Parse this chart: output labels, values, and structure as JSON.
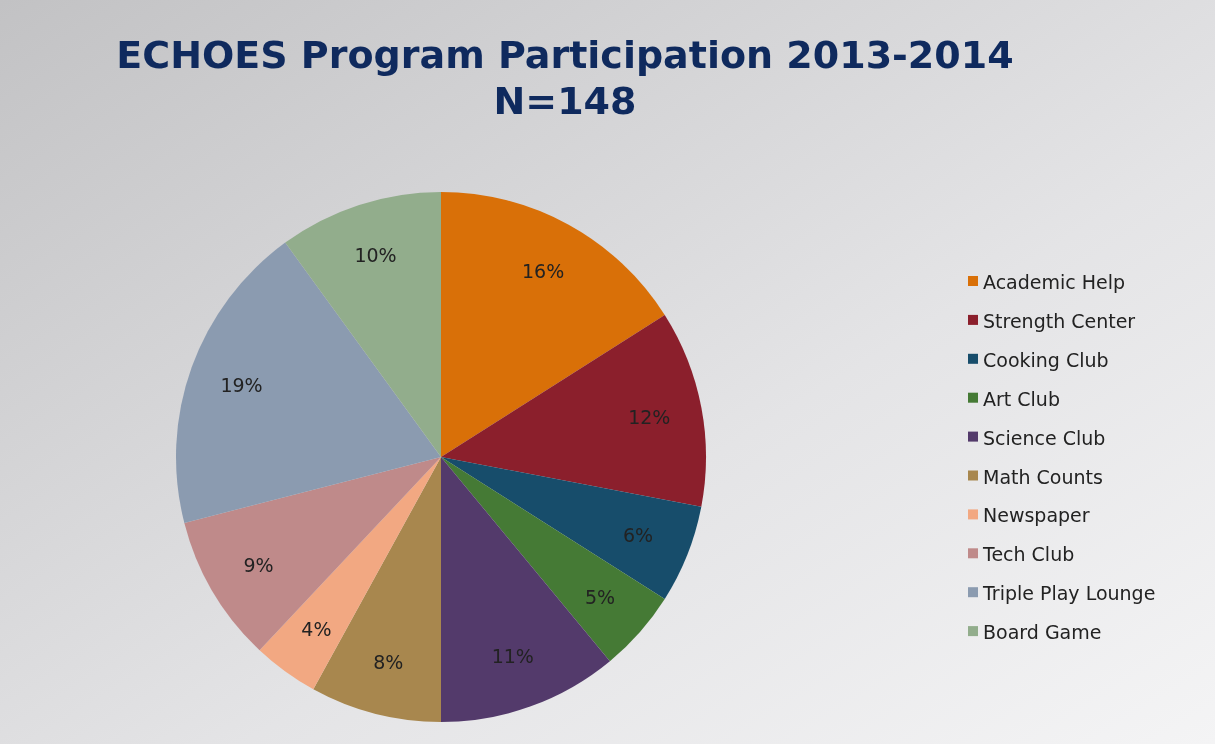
{
  "chart_data": {
    "type": "pie",
    "title": "ECHOES Program Participation 2013-2014\nN=148",
    "categories": [
      "Academic Help",
      "Strength Center",
      "Cooking Club",
      "Art Club",
      "Science Club",
      "Math Counts",
      "Newspaper",
      "Tech Club",
      "Triple Play Lounge",
      "Board Game"
    ],
    "values": [
      16,
      12,
      6,
      5,
      11,
      8,
      4,
      9,
      19,
      10
    ],
    "colors": [
      "#d97008",
      "#8b1f2c",
      "#174d6b",
      "#457a35",
      "#533a6b",
      "#a8874e",
      "#f2a882",
      "#bf8a8a",
      "#8b9bb0",
      "#92ad8c"
    ],
    "value_labels": [
      "16%",
      "12%",
      "6%",
      "5%",
      "11%",
      "8%",
      "4%",
      "9%",
      "19%",
      "10%"
    ],
    "legend": "right"
  }
}
